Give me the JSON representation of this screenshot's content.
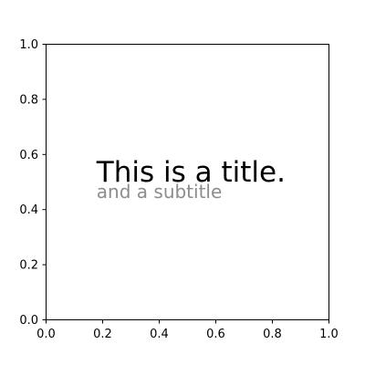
{
  "chart_data": {
    "type": "scatter",
    "xlim": [
      0.0,
      1.0
    ],
    "ylim": [
      0.0,
      1.0
    ],
    "x_ticks": [
      "0.0",
      "0.2",
      "0.4",
      "0.6",
      "0.8",
      "1.0"
    ],
    "y_ticks": [
      "0.0",
      "0.2",
      "0.4",
      "0.6",
      "0.8",
      "1.0"
    ],
    "grid": false,
    "annotations": [
      {
        "text": "This is a title.",
        "x": 0.18,
        "y": 0.5,
        "color": "#000000"
      },
      {
        "text": "and a subtitle",
        "x": 0.18,
        "y": 0.44,
        "color": "#8c8c8c"
      }
    ]
  }
}
